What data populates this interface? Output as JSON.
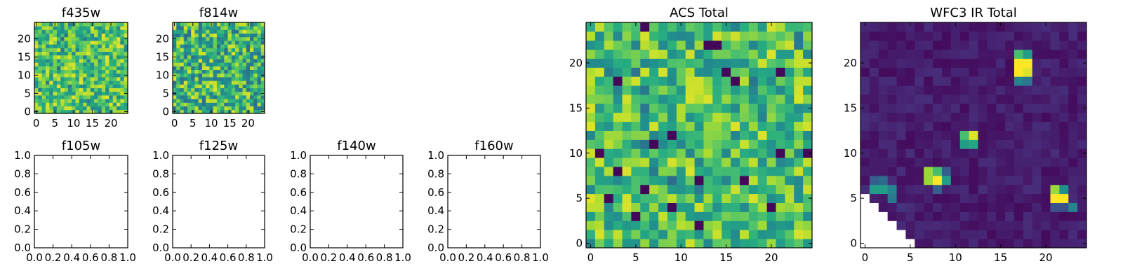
{
  "figure": {
    "panels": [
      {
        "id": "f435w",
        "title": "f435w",
        "kind": "image",
        "xticks": [
          "0",
          "5",
          "10",
          "15",
          "20"
        ],
        "yticks": [
          "0",
          "5",
          "10",
          "15",
          "20"
        ]
      },
      {
        "id": "f814w",
        "title": "f814w",
        "kind": "image",
        "xticks": [
          "0",
          "5",
          "10",
          "15",
          "20"
        ],
        "yticks": [
          "0",
          "5",
          "10",
          "15",
          "20"
        ]
      },
      {
        "id": "f105w",
        "title": "f105w",
        "kind": "empty",
        "xticks": [
          "0.0",
          "0.2",
          "0.4",
          "0.6",
          "0.8",
          "1.0"
        ],
        "yticks": [
          "0.0",
          "0.2",
          "0.4",
          "0.6",
          "0.8",
          "1.0"
        ]
      },
      {
        "id": "f125w",
        "title": "f125w",
        "kind": "empty",
        "xticks": [
          "0.0",
          "0.2",
          "0.4",
          "0.6",
          "0.8",
          "1.0"
        ],
        "yticks": [
          "0.0",
          "0.2",
          "0.4",
          "0.6",
          "0.8",
          "1.0"
        ]
      },
      {
        "id": "f140w",
        "title": "f140w",
        "kind": "empty",
        "xticks": [
          "0.0",
          "0.2",
          "0.4",
          "0.6",
          "0.8",
          "1.0"
        ],
        "yticks": [
          "0.0",
          "0.2",
          "0.4",
          "0.6",
          "0.8",
          "1.0"
        ]
      },
      {
        "id": "f160w",
        "title": "f160w",
        "kind": "empty",
        "xticks": [
          "0.0",
          "0.2",
          "0.4",
          "0.6",
          "0.8",
          "1.0"
        ],
        "yticks": [
          "0.0",
          "0.2",
          "0.4",
          "0.6",
          "0.8",
          "1.0"
        ]
      },
      {
        "id": "acs-total",
        "title": "ACS Total",
        "kind": "image",
        "xticks": [
          "0",
          "5",
          "10",
          "15",
          "20"
        ],
        "yticks": [
          "0",
          "5",
          "10",
          "15",
          "20"
        ]
      },
      {
        "id": "wfc3-ir-total",
        "title": "WFC3 IR Total",
        "kind": "image",
        "xticks": [
          "0",
          "5",
          "10",
          "15",
          "20"
        ],
        "yticks": [
          "0",
          "5",
          "10",
          "15",
          "20"
        ]
      }
    ]
  },
  "chart_data": [
    {
      "type": "heatmap",
      "title": "f435w",
      "grid_size": [
        25,
        25
      ],
      "xlim": [
        -0.5,
        24.5
      ],
      "ylim": [
        -0.5,
        24.5
      ],
      "x_ticks": [
        0,
        5,
        10,
        15,
        20
      ],
      "y_ticks": [
        0,
        5,
        10,
        15,
        20
      ],
      "colormap": "viridis",
      "values_description": "approximate: noisy field of mostly green-yellow pixels (normalized 0-1)",
      "value_range": [
        0,
        1
      ],
      "noise_seed": 435,
      "noise_mean": 0.72,
      "noise_spread": 0.5
    },
    {
      "type": "heatmap",
      "title": "f814w",
      "grid_size": [
        25,
        25
      ],
      "xlim": [
        -0.5,
        24.5
      ],
      "ylim": [
        -0.5,
        24.5
      ],
      "x_ticks": [
        0,
        5,
        10,
        15,
        20
      ],
      "y_ticks": [
        0,
        5,
        10,
        15,
        20
      ],
      "colormap": "viridis",
      "values_description": "approximate: noisy field of green-yellow-teal pixels (normalized 0-1)",
      "value_range": [
        0,
        1
      ],
      "noise_seed": 814,
      "noise_mean": 0.66,
      "noise_spread": 0.6
    },
    {
      "type": "heatmap",
      "title": "f105w",
      "empty": true,
      "xlim": [
        0,
        1
      ],
      "ylim": [
        0,
        1
      ],
      "x_ticks": [
        0.0,
        0.2,
        0.4,
        0.6,
        0.8,
        1.0
      ],
      "y_ticks": [
        0.0,
        0.2,
        0.4,
        0.6,
        0.8,
        1.0
      ]
    },
    {
      "type": "heatmap",
      "title": "f125w",
      "empty": true,
      "xlim": [
        0,
        1
      ],
      "ylim": [
        0,
        1
      ],
      "x_ticks": [
        0.0,
        0.2,
        0.4,
        0.6,
        0.8,
        1.0
      ],
      "y_ticks": [
        0.0,
        0.2,
        0.4,
        0.6,
        0.8,
        1.0
      ]
    },
    {
      "type": "heatmap",
      "title": "f140w",
      "empty": true,
      "xlim": [
        0,
        1
      ],
      "ylim": [
        0,
        1
      ],
      "x_ticks": [
        0.0,
        0.2,
        0.4,
        0.6,
        0.8,
        1.0
      ],
      "y_ticks": [
        0.0,
        0.2,
        0.4,
        0.6,
        0.8,
        1.0
      ]
    },
    {
      "type": "heatmap",
      "title": "f160w",
      "empty": true,
      "xlim": [
        0,
        1
      ],
      "ylim": [
        0,
        1
      ],
      "x_ticks": [
        0.0,
        0.2,
        0.4,
        0.6,
        0.8,
        1.0
      ],
      "y_ticks": [
        0.0,
        0.2,
        0.4,
        0.6,
        0.8,
        1.0
      ]
    },
    {
      "type": "heatmap",
      "title": "ACS Total",
      "grid_size": [
        25,
        25
      ],
      "xlim": [
        -0.5,
        24.5
      ],
      "ylim": [
        -0.5,
        24.5
      ],
      "x_ticks": [
        0,
        5,
        10,
        15,
        20
      ],
      "y_ticks": [
        0,
        5,
        10,
        15,
        20
      ],
      "colormap": "viridis",
      "values_description": "approximate: noisy field of mostly green-yellow pixels with scattered dark/teal pixels (normalized 0-1)",
      "value_range": [
        0,
        1
      ],
      "noise_seed": 2024,
      "noise_mean": 0.7,
      "noise_spread": 0.5,
      "dark_pixels": [
        [
          6,
          24
        ],
        [
          15,
          19
        ],
        [
          13,
          22
        ],
        [
          3,
          18
        ],
        [
          16,
          18
        ],
        [
          21,
          19
        ],
        [
          14,
          22
        ],
        [
          9,
          12
        ],
        [
          7,
          11
        ],
        [
          21,
          10
        ],
        [
          1,
          10
        ],
        [
          3,
          8
        ],
        [
          17,
          7
        ],
        [
          6,
          6
        ],
        [
          12,
          7
        ],
        [
          5,
          3
        ],
        [
          12,
          2
        ],
        [
          9,
          4
        ],
        [
          2,
          5
        ],
        [
          20,
          4
        ],
        [
          24,
          10
        ]
      ]
    },
    {
      "type": "heatmap",
      "title": "WFC3 IR Total",
      "grid_size": [
        25,
        25
      ],
      "xlim": [
        -0.5,
        24.5
      ],
      "ylim": [
        -0.5,
        24.5
      ],
      "x_ticks": [
        0,
        5,
        10,
        15,
        20
      ],
      "y_ticks": [
        0,
        5,
        10,
        15,
        20
      ],
      "colormap": "viridis",
      "values_description": "approximate: dark purple background (~0.08) with four bright sources and a masked (blank) lower-left triangle",
      "value_range": [
        0,
        1
      ],
      "background": 0.08,
      "noise_seed": 160,
      "sources": [
        {
          "cells": [
            [
              17,
              21,
              0.7
            ],
            [
              18,
              21,
              0.55
            ],
            [
              17,
              20,
              1.0
            ],
            [
              18,
              20,
              1.0
            ],
            [
              17,
              19,
              1.0
            ],
            [
              18,
              19,
              0.95
            ],
            [
              17,
              18,
              0.45
            ],
            [
              18,
              18,
              0.4
            ]
          ]
        },
        {
          "cells": [
            [
              11,
              12,
              0.7
            ],
            [
              12,
              12,
              0.95
            ],
            [
              11,
              11,
              0.55
            ],
            [
              12,
              11,
              0.6
            ]
          ]
        },
        {
          "cells": [
            [
              7,
              8,
              0.85
            ],
            [
              8,
              8,
              0.7
            ],
            [
              9,
              8,
              0.3
            ],
            [
              7,
              7,
              0.85
            ],
            [
              8,
              7,
              1.0
            ],
            [
              9,
              7,
              0.55
            ],
            [
              8,
              6,
              0.3
            ]
          ]
        },
        {
          "cells": [
            [
              21,
              6,
              0.85
            ],
            [
              22,
              6,
              0.5
            ],
            [
              21,
              5,
              1.0
            ],
            [
              22,
              5,
              1.0
            ],
            [
              23,
              4,
              0.45
            ],
            [
              21,
              4,
              0.25
            ],
            [
              22,
              4,
              0.25
            ]
          ]
        }
      ],
      "edge_cells": [
        [
          1,
          7,
          0.3
        ],
        [
          2,
          7,
          0.35
        ],
        [
          1,
          6,
          0.55
        ],
        [
          2,
          6,
          0.55
        ],
        [
          3,
          6,
          0.45
        ],
        [
          3,
          5,
          0.4
        ],
        [
          4,
          4,
          0.15
        ]
      ],
      "masked_triangle": "cells with x + 1 < 7 - y (lower-left corner, below diagonal from (0,7) to (7,0))"
    }
  ]
}
